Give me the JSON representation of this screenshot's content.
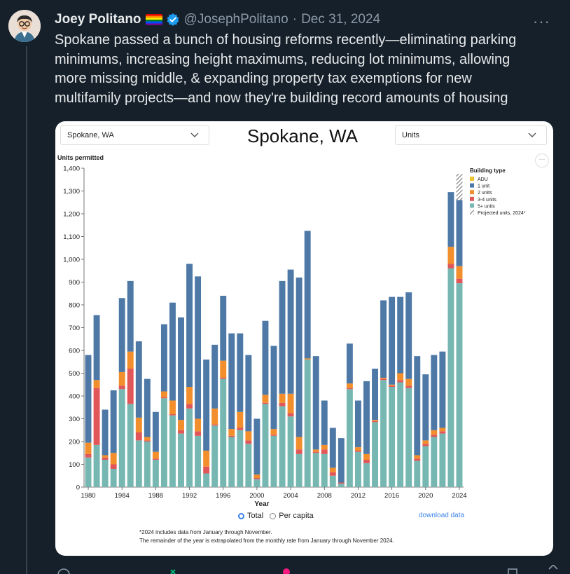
{
  "tweet": {
    "author_name": "Joey Politano",
    "handle": "@JosephPolitano",
    "separator": "·",
    "date": "Dec 31, 2024",
    "more_label": "···",
    "lines": [
      "Spokane passed a bunch of housing reforms recently—eliminating parking",
      "minimums, increasing height maximums, reducing lot minimums, allowing",
      "more missing middle, & expanding property tax exemptions for new",
      "multifamily projects—and now they're building record amounts of housing"
    ]
  },
  "card": {
    "location_select": "Spokane, WA",
    "chart_title": "Spokane, WA",
    "measure_select": "Units",
    "more_label": "···",
    "radio_total": "Total",
    "radio_per_capita": "Per capita",
    "download_label": "download data",
    "footnote_1": "*2024 includes data from January through November.",
    "footnote_2": "The remainder of the year is extrapolated from the monthly rate from January through November 2024."
  },
  "colors": {
    "background": "#15202b",
    "adu": "#f2c230",
    "one_unit": "#4e79a7",
    "two_units": "#f28e2b",
    "three_four_units": "#e15759",
    "five_plus_units": "#76b7b2",
    "link": "#3b82e8",
    "verified": "#1d9bf0"
  },
  "chart_data": {
    "type": "bar",
    "stacked": true,
    "ylabel": "Units permitted",
    "xlabel": "Year",
    "ylim": [
      0,
      1400
    ],
    "yticks": [
      "0",
      "100",
      "200",
      "300",
      "400",
      "500",
      "600",
      "700",
      "800",
      "900",
      "1,000",
      "1,100",
      "1,200",
      "1,300",
      "1,400"
    ],
    "xticks": [
      "1980",
      "1984",
      "1988",
      "1992",
      "1996",
      "2000",
      "2004",
      "2008",
      "2012",
      "2016",
      "2020",
      "2024"
    ],
    "legend_title": "Building type",
    "legend_position": "top-right",
    "categories": [
      1980,
      1981,
      1982,
      1983,
      1984,
      1985,
      1986,
      1987,
      1988,
      1989,
      1990,
      1991,
      1992,
      1993,
      1994,
      1995,
      1996,
      1997,
      1998,
      1999,
      2000,
      2001,
      2002,
      2003,
      2004,
      2005,
      2006,
      2007,
      2008,
      2009,
      2010,
      2011,
      2012,
      2013,
      2014,
      2015,
      2016,
      2017,
      2018,
      2019,
      2020,
      2021,
      2022,
      2023,
      2024
    ],
    "series": [
      {
        "name": "5+ units",
        "color": "#76b7b2",
        "values": [
          130,
          185,
          120,
          80,
          430,
          365,
          205,
          200,
          120,
          390,
          315,
          235,
          345,
          225,
          60,
          270,
          475,
          220,
          250,
          190,
          35,
          365,
          225,
          355,
          310,
          145,
          560,
          150,
          145,
          50,
          15,
          430,
          155,
          105,
          285,
          470,
          440,
          460,
          435,
          115,
          180,
          220,
          235,
          960,
          895
        ]
      },
      {
        "name": "3-4 units",
        "color": "#e15759",
        "values": [
          15,
          250,
          10,
          20,
          15,
          155,
          35,
          5,
          5,
          5,
          5,
          15,
          20,
          20,
          30,
          5,
          5,
          5,
          10,
          15,
          5,
          5,
          5,
          15,
          15,
          20,
          0,
          5,
          20,
          15,
          5,
          5,
          5,
          15,
          5,
          5,
          5,
          10,
          10,
          10,
          10,
          10,
          10,
          20,
          20
        ]
      },
      {
        "name": "2 units",
        "color": "#f28e2b",
        "values": [
          50,
          35,
          10,
          50,
          60,
          75,
          65,
          15,
          30,
          25,
          60,
          45,
          75,
          55,
          70,
          70,
          75,
          30,
          70,
          40,
          15,
          35,
          25,
          40,
          85,
          55,
          5,
          10,
          20,
          20,
          0,
          20,
          15,
          25,
          5,
          5,
          5,
          30,
          30,
          15,
          15,
          20,
          15,
          75,
          55
        ]
      },
      {
        "name": "1 unit",
        "color": "#4e79a7",
        "values": [
          385,
          285,
          200,
          275,
          325,
          310,
          335,
          255,
          175,
          295,
          430,
          450,
          540,
          625,
          400,
          280,
          285,
          420,
          345,
          335,
          245,
          325,
          365,
          495,
          545,
          700,
          560,
          410,
          195,
          175,
          195,
          175,
          205,
          320,
          225,
          340,
          385,
          335,
          380,
          435,
          290,
          330,
          335,
          240,
          290
        ]
      },
      {
        "name": "ADU",
        "color": "#f2c230",
        "values": [
          0,
          0,
          0,
          0,
          0,
          0,
          0,
          0,
          0,
          0,
          0,
          0,
          0,
          0,
          0,
          0,
          0,
          0,
          0,
          0,
          0,
          0,
          0,
          0,
          0,
          0,
          0,
          0,
          0,
          0,
          0,
          0,
          0,
          0,
          0,
          0,
          0,
          0,
          0,
          0,
          0,
          0,
          0,
          0,
          0
        ]
      }
    ],
    "projected_series": {
      "name": "Projected units, 2024*",
      "category": 2024,
      "value": 115
    },
    "legend_entries": [
      "ADU",
      "1 unit",
      "2 units",
      "3-4 units",
      "5+ units",
      "Projected units, 2024*"
    ]
  }
}
